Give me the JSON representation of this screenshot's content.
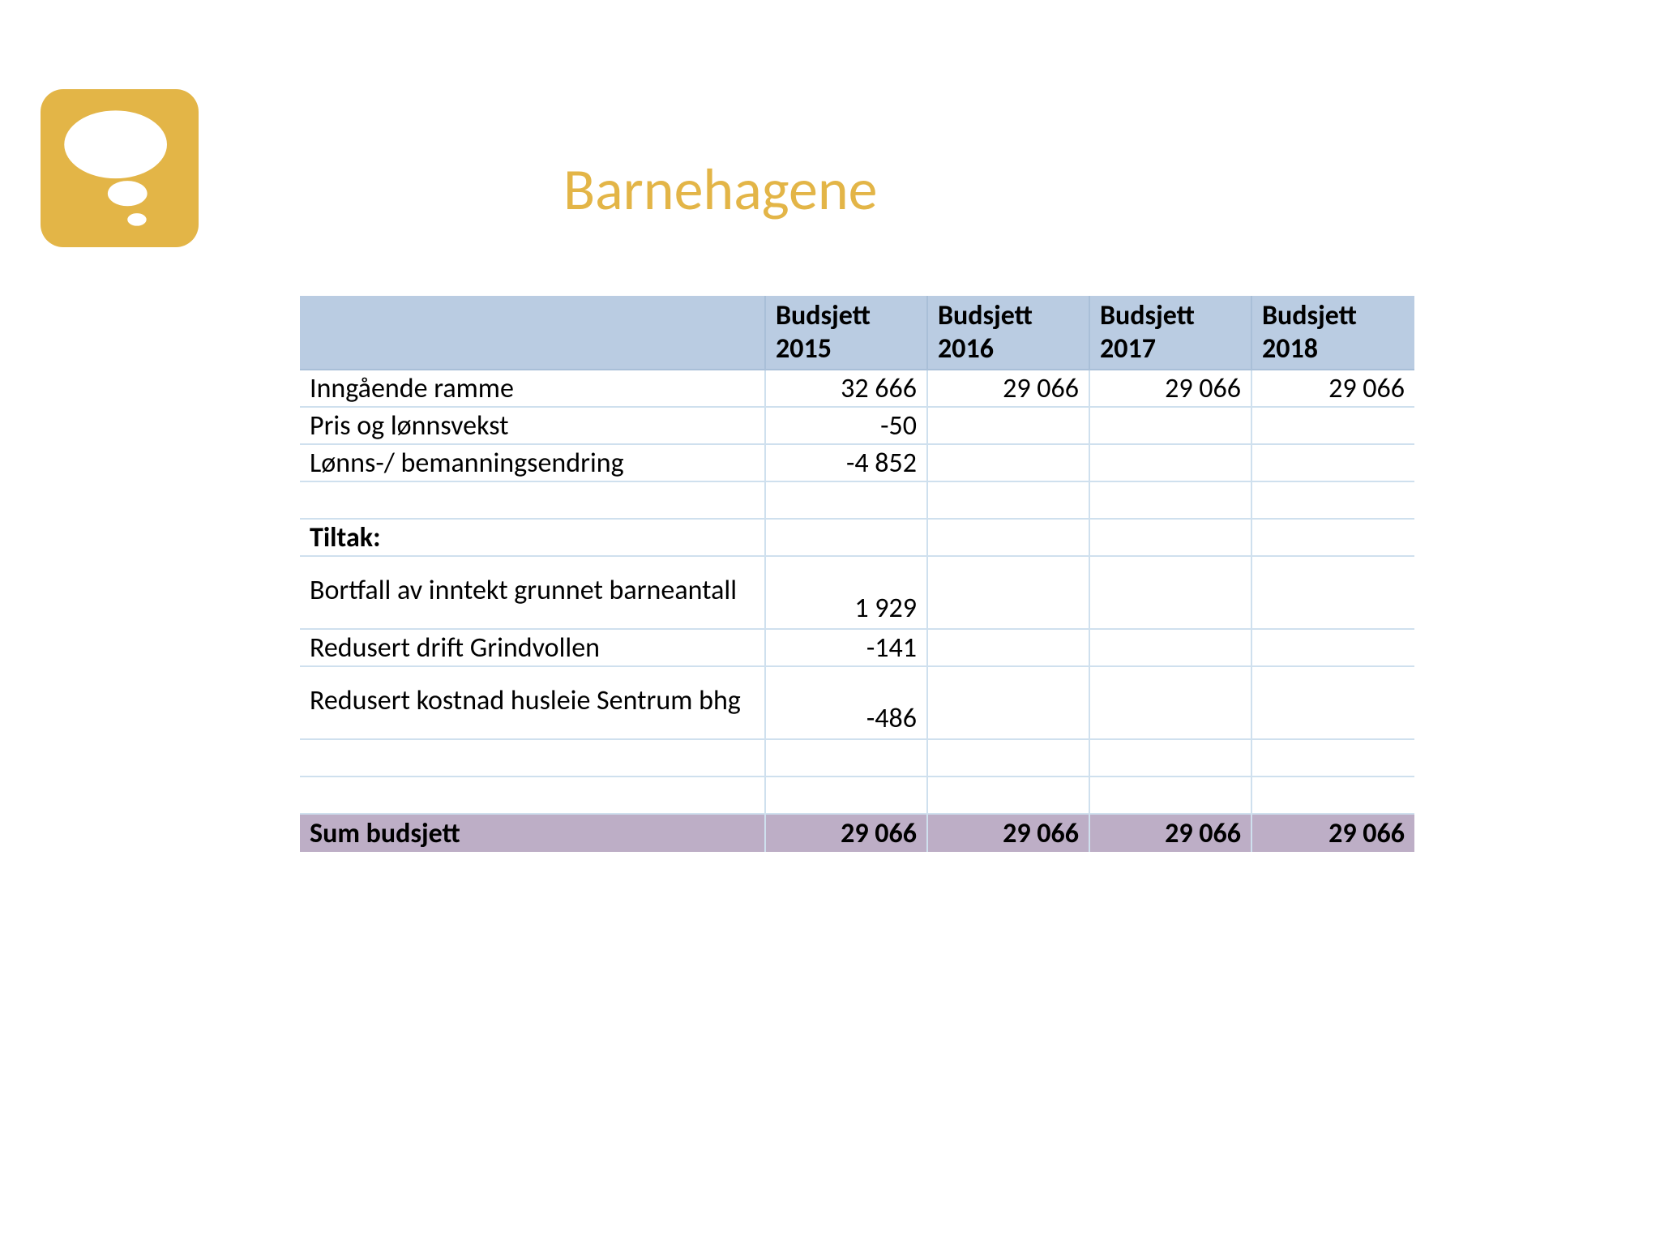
{
  "title": "Barnehagene",
  "colors": {
    "accent": "#e3b547",
    "header_bg": "#bacce2",
    "sum_bg": "#bdaec6",
    "row_border": "#cfe0ee",
    "header_border": "#a9bfd8",
    "background": "#ffffff",
    "text": "#000000"
  },
  "table": {
    "columns": [
      "",
      "Budsjett 2015",
      "Budsjett 2016",
      "Budsjett 2017",
      "Budsjett 2018"
    ],
    "rows": [
      {
        "label": "Inngående ramme",
        "values": [
          "32 666",
          "29 066",
          "29 066",
          "29 066"
        ]
      },
      {
        "label": "Pris og lønnsvekst",
        "values": [
          "-50",
          "",
          "",
          ""
        ]
      },
      {
        "label": "Lønns-/ bemanningsendring",
        "values": [
          "-4 852",
          "",
          "",
          ""
        ]
      },
      {
        "label": "",
        "values": [
          "",
          "",
          "",
          ""
        ],
        "blank": true
      },
      {
        "label": "Tiltak:",
        "values": [
          "",
          "",
          "",
          ""
        ],
        "bold": true
      },
      {
        "label": "Bortfall av inntekt grunnet barneantall",
        "values": [
          "1 929",
          "",
          "",
          ""
        ],
        "tall": true
      },
      {
        "label": "Redusert drift Grindvollen",
        "values": [
          "-141",
          "",
          "",
          ""
        ]
      },
      {
        "label": "Redusert kostnad husleie Sentrum bhg",
        "values": [
          "-486",
          "",
          "",
          ""
        ],
        "tall": true
      },
      {
        "label": "",
        "values": [
          "",
          "",
          "",
          ""
        ],
        "blank": true
      },
      {
        "label": "",
        "values": [
          "",
          "",
          "",
          ""
        ],
        "blank": true
      }
    ],
    "sum": {
      "label": "Sum budsjett",
      "values": [
        "29 066",
        "29 066",
        "29 066",
        "29 066"
      ]
    }
  }
}
